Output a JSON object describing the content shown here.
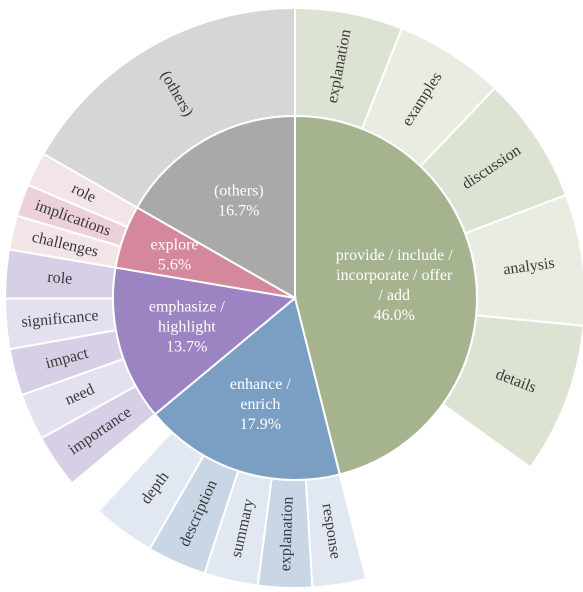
{
  "chart_data": {
    "type": "sunburst",
    "title": "",
    "inner": [
      {
        "id": "provide",
        "lines": [
          "provide / include /",
          "incorporate / offer",
          "/ add"
        ],
        "pct_label": "46.0%",
        "value": 46.0,
        "color": "#a5b38e",
        "text_color": "#ffffff"
      },
      {
        "id": "enhance",
        "lines": [
          "enhance /",
          "enrich"
        ],
        "pct_label": "17.9%",
        "value": 17.9,
        "color": "#7b9ec3",
        "text_color": "#ffffff"
      },
      {
        "id": "emphasize",
        "lines": [
          "emphasize /",
          "highlight"
        ],
        "pct_label": "13.7%",
        "value": 13.7,
        "color": "#9b84c1",
        "text_color": "#ffffff"
      },
      {
        "id": "explore",
        "lines": [
          "explore"
        ],
        "pct_label": "5.6%",
        "value": 5.6,
        "color": "#d5889c",
        "text_color": "#ffffff"
      },
      {
        "id": "others",
        "lines": [
          "(others)"
        ],
        "pct_label": "16.7%",
        "value": 16.7,
        "color": "#a9a9a9",
        "text_color": "#ffffff"
      }
    ],
    "outer": [
      {
        "parent": "provide",
        "label": "explanation",
        "value": 6.0,
        "color": "#dde3d2"
      },
      {
        "parent": "provide",
        "label": "examples",
        "value": 6.1,
        "color": "#e9ede1"
      },
      {
        "parent": "provide",
        "label": "discussion",
        "value": 7.1,
        "color": "#dde3d2"
      },
      {
        "parent": "provide",
        "label": "analysis",
        "value": 7.3,
        "color": "#e9ede1"
      },
      {
        "parent": "provide",
        "label": "details",
        "value": 8.4,
        "color": "#dde3d2"
      },
      {
        "parent": "provide",
        "label": "",
        "value": 11.1,
        "color": "#ffffff"
      },
      {
        "parent": "enhance",
        "label": "response",
        "value": 3.0,
        "color": "#e2e8f1"
      },
      {
        "parent": "enhance",
        "label": "explanation",
        "value": 3.0,
        "color": "#c9d6e6"
      },
      {
        "parent": "enhance",
        "label": "summary",
        "value": 3.0,
        "color": "#e2e8f1"
      },
      {
        "parent": "enhance",
        "label": "description",
        "value": 3.3,
        "color": "#c9d6e6"
      },
      {
        "parent": "enhance",
        "label": "depth",
        "value": 3.5,
        "color": "#e2e8f1"
      },
      {
        "parent": "enhance",
        "label": "",
        "value": 2.1,
        "color": "#ffffff"
      },
      {
        "parent": "emphasize",
        "label": "importance",
        "value": 3.0,
        "color": "#d7cfe6"
      },
      {
        "parent": "emphasize",
        "label": "need",
        "value": 2.6,
        "color": "#e5e0ef"
      },
      {
        "parent": "emphasize",
        "label": "impact",
        "value": 2.6,
        "color": "#d7cfe6"
      },
      {
        "parent": "emphasize",
        "label": "significance",
        "value": 2.8,
        "color": "#e5e0ef"
      },
      {
        "parent": "emphasize",
        "label": "role",
        "value": 2.7,
        "color": "#d7cfe6"
      },
      {
        "parent": "explore",
        "label": "challenges",
        "value": 1.9,
        "color": "#f3e4e8"
      },
      {
        "parent": "explore",
        "label": "implications",
        "value": 1.8,
        "color": "#ecd1d8"
      },
      {
        "parent": "explore",
        "label": "role",
        "value": 1.9,
        "color": "#f3e4e8"
      },
      {
        "parent": "others",
        "label": "(others)",
        "value": 16.7,
        "color": "#d6d6d6"
      }
    ]
  }
}
